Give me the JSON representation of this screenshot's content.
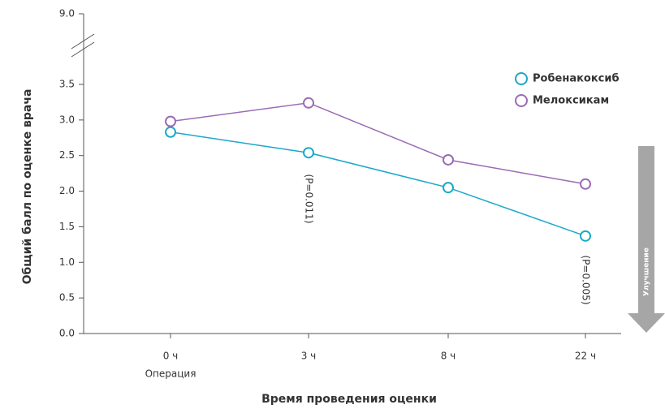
{
  "chart_data": {
    "type": "line",
    "y_label": "Общий балл по оценке врача",
    "x_label": "Время проведения оценки",
    "categories": [
      "0 ч",
      "3 ч",
      "8 ч",
      "22 ч"
    ],
    "x_sublabel": "Операция",
    "series": [
      {
        "name": "Робенакоксиб",
        "color": "#1aa9c9",
        "values": [
          2.83,
          2.54,
          2.05,
          1.37
        ]
      },
      {
        "name": "Мелоксикам",
        "color": "#9b6bb5",
        "values": [
          2.98,
          3.24,
          2.44,
          2.1
        ]
      }
    ],
    "ylim": [
      0,
      3.5
    ],
    "yticks": [
      {
        "value": 0,
        "label": "0.0"
      },
      {
        "value": 0.5,
        "label": "0.5"
      },
      {
        "value": 1,
        "label": "1.0"
      },
      {
        "value": 1.5,
        "label": "1.5"
      },
      {
        "value": 2,
        "label": "2.0"
      },
      {
        "value": 2.5,
        "label": "2.5"
      },
      {
        "value": 3,
        "label": "3.0"
      },
      {
        "value": 3.5,
        "label": "3.5"
      },
      {
        "value": 9,
        "label": "9.0"
      }
    ],
    "axis_break": true,
    "annotations": [
      "(P=0.011)",
      "(P=0.005)"
    ],
    "arrow_label": "Улучшение",
    "legend": "upper right"
  }
}
